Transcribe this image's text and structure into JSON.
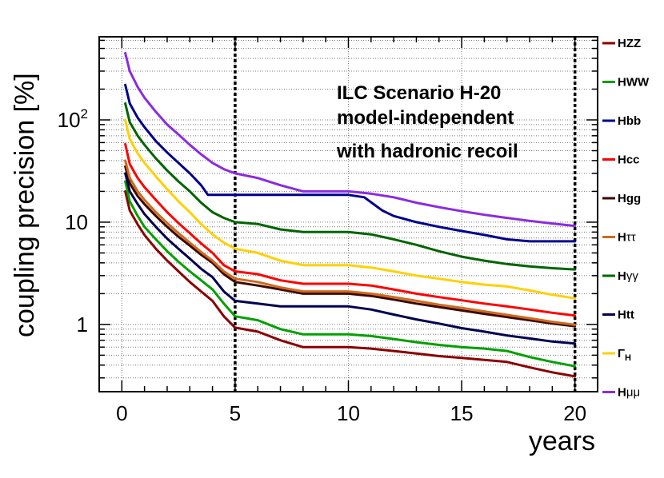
{
  "chart_data": {
    "type": "line",
    "title": "",
    "xlabel": "years",
    "ylabel": "coupling precision [%]",
    "x_scale": "linear",
    "y_scale": "log",
    "xlim": [
      -1,
      21
    ],
    "ylim": [
      0.22,
      650
    ],
    "x_ticks": [
      {
        "v": 0,
        "label": "0"
      },
      {
        "v": 5,
        "label": "5"
      },
      {
        "v": 10,
        "label": "10"
      },
      {
        "v": 15,
        "label": "15"
      },
      {
        "v": 20,
        "label": "20"
      }
    ],
    "y_ticks": [
      {
        "v": 1,
        "label": "1"
      },
      {
        "v": 10,
        "label": "10"
      },
      {
        "v": 100,
        "base": "10",
        "exp": "2"
      }
    ],
    "vlines": [
      5,
      20
    ],
    "annotations": [
      "ILC Scenario H-20",
      "model-independent",
      "with hadronic recoil"
    ],
    "series": [
      {
        "name": "HZZ",
        "label_main": "HZZ",
        "label_sub": "",
        "color": "#8b0000",
        "points": [
          [
            0.15,
            20
          ],
          [
            0.35,
            13
          ],
          [
            0.7,
            9.5
          ],
          [
            1,
            7.5
          ],
          [
            1.5,
            5.5
          ],
          [
            2,
            4.2
          ],
          [
            2.5,
            3.3
          ],
          [
            3,
            2.6
          ],
          [
            3.5,
            2.1
          ],
          [
            4,
            1.7
          ],
          [
            4.5,
            1.2
          ],
          [
            5,
            0.93
          ],
          [
            6,
            0.85
          ],
          [
            7,
            0.7
          ],
          [
            8,
            0.6
          ],
          [
            9,
            0.6
          ],
          [
            10,
            0.6
          ],
          [
            11,
            0.58
          ],
          [
            12,
            0.55
          ],
          [
            13,
            0.52
          ],
          [
            14,
            0.49
          ],
          [
            15,
            0.47
          ],
          [
            16,
            0.45
          ],
          [
            17,
            0.43
          ],
          [
            18,
            0.38
          ],
          [
            19,
            0.34
          ],
          [
            20,
            0.31
          ]
        ]
      },
      {
        "name": "HWW",
        "label_main": "HWW",
        "label_sub": "",
        "color": "#00a000",
        "points": [
          [
            0.15,
            25
          ],
          [
            0.35,
            16
          ],
          [
            0.7,
            11.5
          ],
          [
            1,
            9
          ],
          [
            1.5,
            6.8
          ],
          [
            2,
            5.2
          ],
          [
            2.5,
            4.1
          ],
          [
            3,
            3.3
          ],
          [
            3.5,
            2.7
          ],
          [
            4,
            2.2
          ],
          [
            4.5,
            1.6
          ],
          [
            5,
            1.2
          ],
          [
            6,
            1.1
          ],
          [
            7,
            0.9
          ],
          [
            8,
            0.8
          ],
          [
            9,
            0.8
          ],
          [
            10,
            0.8
          ],
          [
            11,
            0.77
          ],
          [
            12,
            0.72
          ],
          [
            13,
            0.67
          ],
          [
            14,
            0.63
          ],
          [
            15,
            0.6
          ],
          [
            16,
            0.58
          ],
          [
            17,
            0.55
          ],
          [
            18,
            0.48
          ],
          [
            19,
            0.43
          ],
          [
            20,
            0.39
          ]
        ]
      },
      {
        "name": "Hbb",
        "label_main": "Hbb",
        "label_sub": "",
        "color": "#00008b",
        "points": [
          [
            0.15,
            220
          ],
          [
            0.35,
            145
          ],
          [
            0.7,
            105
          ],
          [
            1,
            85
          ],
          [
            1.5,
            62
          ],
          [
            2,
            48
          ],
          [
            2.5,
            38
          ],
          [
            3,
            30
          ],
          [
            3.5,
            23
          ],
          [
            3.8,
            18.5
          ],
          [
            5,
            18.5
          ],
          [
            6,
            18.5
          ],
          [
            7,
            18.5
          ],
          [
            8,
            18.5
          ],
          [
            9,
            18.5
          ],
          [
            10,
            18.5
          ],
          [
            10.7,
            17.5
          ],
          [
            11.5,
            13
          ],
          [
            12,
            11.5
          ],
          [
            13,
            10
          ],
          [
            14,
            9
          ],
          [
            15,
            8.2
          ],
          [
            16,
            7.5
          ],
          [
            17,
            6.8
          ],
          [
            18,
            6.5
          ],
          [
            19,
            6.5
          ],
          [
            20,
            6.5
          ]
        ]
      },
      {
        "name": "Hcc",
        "label_main": "Hcc",
        "label_sub": "",
        "color": "#ff0000",
        "points": [
          [
            0.15,
            58
          ],
          [
            0.35,
            37
          ],
          [
            0.7,
            27
          ],
          [
            1,
            22
          ],
          [
            1.5,
            16.5
          ],
          [
            2,
            12.5
          ],
          [
            2.5,
            9.8
          ],
          [
            3,
            7.8
          ],
          [
            3.5,
            6.2
          ],
          [
            4,
            5
          ],
          [
            4.5,
            3.8
          ],
          [
            5,
            3.3
          ],
          [
            6,
            3.1
          ],
          [
            7,
            2.7
          ],
          [
            8,
            2.5
          ],
          [
            9,
            2.5
          ],
          [
            10,
            2.5
          ],
          [
            11,
            2.4
          ],
          [
            12,
            2.2
          ],
          [
            13,
            2
          ],
          [
            14,
            1.85
          ],
          [
            15,
            1.72
          ],
          [
            16,
            1.6
          ],
          [
            17,
            1.5
          ],
          [
            18,
            1.4
          ],
          [
            19,
            1.3
          ],
          [
            20,
            1.22
          ]
        ]
      },
      {
        "name": "Hgg",
        "label_main": "Hgg",
        "label_sub": "",
        "color": "#3a0a00",
        "points": [
          [
            0.15,
            35
          ],
          [
            0.35,
            24
          ],
          [
            0.7,
            18
          ],
          [
            1,
            15
          ],
          [
            1.5,
            11.5
          ],
          [
            2,
            9
          ],
          [
            2.5,
            7.2
          ],
          [
            3,
            5.9
          ],
          [
            3.5,
            4.8
          ],
          [
            4,
            4
          ],
          [
            4.5,
            3.1
          ],
          [
            5,
            2.6
          ],
          [
            6,
            2.4
          ],
          [
            7,
            2.2
          ],
          [
            8,
            2
          ],
          [
            9,
            2
          ],
          [
            10,
            2
          ],
          [
            11,
            1.9
          ],
          [
            12,
            1.75
          ],
          [
            13,
            1.6
          ],
          [
            14,
            1.48
          ],
          [
            15,
            1.37
          ],
          [
            16,
            1.27
          ],
          [
            17,
            1.18
          ],
          [
            18,
            1.1
          ],
          [
            19,
            1.02
          ],
          [
            20,
            0.96
          ]
        ]
      },
      {
        "name": "Htautau",
        "label_main": "H",
        "label_sub": "ττ",
        "color": "#d2691e",
        "points": [
          [
            0.15,
            40
          ],
          [
            0.35,
            27
          ],
          [
            0.7,
            20
          ],
          [
            1,
            16.5
          ],
          [
            1.5,
            12.5
          ],
          [
            2,
            9.8
          ],
          [
            2.5,
            7.8
          ],
          [
            3,
            6.3
          ],
          [
            3.5,
            5.1
          ],
          [
            4,
            4.2
          ],
          [
            4.5,
            3.3
          ],
          [
            5,
            2.8
          ],
          [
            6,
            2.6
          ],
          [
            7,
            2.3
          ],
          [
            8,
            2.1
          ],
          [
            9,
            2.1
          ],
          [
            10,
            2.1
          ],
          [
            11,
            2
          ],
          [
            12,
            1.85
          ],
          [
            13,
            1.7
          ],
          [
            14,
            1.56
          ],
          [
            15,
            1.45
          ],
          [
            16,
            1.34
          ],
          [
            17,
            1.24
          ],
          [
            18,
            1.15
          ],
          [
            19,
            1.06
          ],
          [
            20,
            0.99
          ]
        ]
      },
      {
        "name": "Hgammagamma",
        "label_main": "H",
        "label_sub": "γγ",
        "color": "#006400",
        "points": [
          [
            0.15,
            145
          ],
          [
            0.35,
            95
          ],
          [
            0.7,
            70
          ],
          [
            1,
            57
          ],
          [
            1.5,
            42
          ],
          [
            2,
            32
          ],
          [
            2.5,
            25
          ],
          [
            3,
            20
          ],
          [
            3.5,
            15.5
          ],
          [
            4,
            12.5
          ],
          [
            4.5,
            11
          ],
          [
            5,
            10
          ],
          [
            6,
            9.6
          ],
          [
            7,
            8.5
          ],
          [
            8,
            8
          ],
          [
            9,
            8
          ],
          [
            10,
            8
          ],
          [
            11,
            7.6
          ],
          [
            12,
            6.8
          ],
          [
            13,
            6
          ],
          [
            14,
            5.2
          ],
          [
            15,
            4.6
          ],
          [
            16,
            4.2
          ],
          [
            17,
            3.9
          ],
          [
            18,
            3.7
          ],
          [
            19,
            3.55
          ],
          [
            20,
            3.45
          ]
        ]
      },
      {
        "name": "Htt",
        "label_main": "Htt",
        "label_sub": "",
        "color": "#000050",
        "points": [
          [
            0.15,
            30
          ],
          [
            0.35,
            20
          ],
          [
            0.7,
            15
          ],
          [
            1,
            12
          ],
          [
            1.5,
            9
          ],
          [
            2,
            6.9
          ],
          [
            2.5,
            5.5
          ],
          [
            3,
            4.4
          ],
          [
            3.5,
            3.5
          ],
          [
            4,
            2.9
          ],
          [
            4.5,
            2.1
          ],
          [
            5,
            1.7
          ],
          [
            6,
            1.6
          ],
          [
            7,
            1.5
          ],
          [
            8,
            1.5
          ],
          [
            9,
            1.5
          ],
          [
            10,
            1.5
          ],
          [
            11,
            1.4
          ],
          [
            12,
            1.25
          ],
          [
            13,
            1.12
          ],
          [
            14,
            1.02
          ],
          [
            15,
            0.92
          ],
          [
            16,
            0.85
          ],
          [
            17,
            0.78
          ],
          [
            18,
            0.73
          ],
          [
            19,
            0.68
          ],
          [
            20,
            0.65
          ]
        ]
      },
      {
        "name": "GammaH",
        "label_main": "Γ",
        "label_sub": "H",
        "color": "#ffd000",
        "points": [
          [
            0.15,
            100
          ],
          [
            0.35,
            65
          ],
          [
            0.7,
            47
          ],
          [
            1,
            38
          ],
          [
            1.5,
            28
          ],
          [
            2,
            21
          ],
          [
            2.5,
            16
          ],
          [
            3,
            12.5
          ],
          [
            3.5,
            9.6
          ],
          [
            4,
            7.6
          ],
          [
            4.5,
            6.3
          ],
          [
            5,
            5.5
          ],
          [
            6,
            5
          ],
          [
            7,
            4.2
          ],
          [
            8,
            3.8
          ],
          [
            9,
            3.8
          ],
          [
            10,
            3.8
          ],
          [
            11,
            3.6
          ],
          [
            12,
            3.3
          ],
          [
            13,
            3
          ],
          [
            14,
            2.8
          ],
          [
            15,
            2.6
          ],
          [
            16,
            2.45
          ],
          [
            17,
            2.35
          ],
          [
            18,
            2.15
          ],
          [
            19,
            1.95
          ],
          [
            20,
            1.8
          ]
        ]
      },
      {
        "name": "Hmumu",
        "label_main": "H",
        "label_sub": "μμ",
        "color": "#8a2be2",
        "points": [
          [
            0.15,
            450
          ],
          [
            0.35,
            300
          ],
          [
            0.7,
            210
          ],
          [
            1,
            165
          ],
          [
            1.5,
            120
          ],
          [
            2,
            90
          ],
          [
            2.5,
            72
          ],
          [
            3,
            57
          ],
          [
            3.5,
            46
          ],
          [
            4,
            38
          ],
          [
            4.5,
            33
          ],
          [
            5,
            30
          ],
          [
            6,
            27
          ],
          [
            7,
            23
          ],
          [
            8,
            20
          ],
          [
            9,
            20
          ],
          [
            10,
            20
          ],
          [
            11,
            19
          ],
          [
            12,
            17.5
          ],
          [
            13,
            15.5
          ],
          [
            14,
            14
          ],
          [
            15,
            12.8
          ],
          [
            16,
            11.8
          ],
          [
            17,
            11
          ],
          [
            18,
            10.3
          ],
          [
            19,
            9.7
          ],
          [
            20,
            9.2
          ]
        ]
      }
    ]
  }
}
